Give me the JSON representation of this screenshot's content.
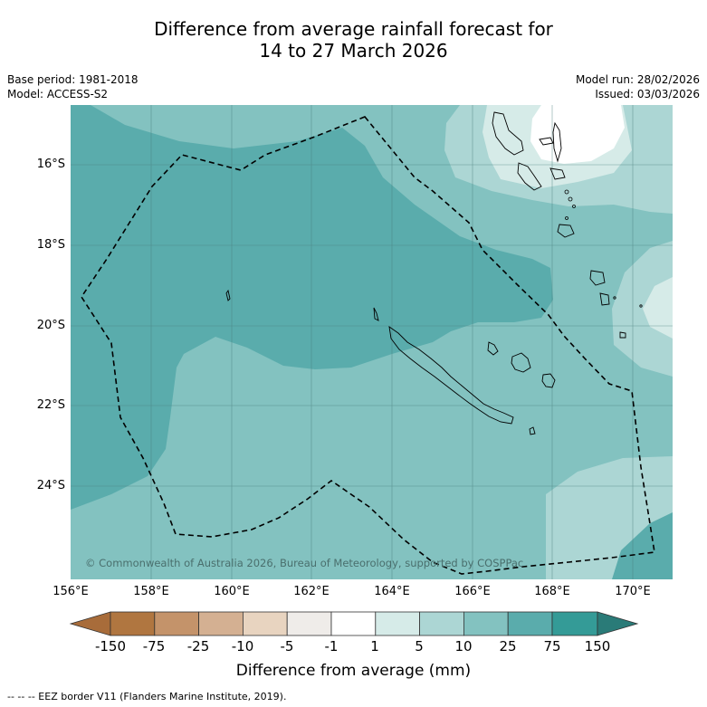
{
  "title": {
    "line1": "Difference from average rainfall forecast for",
    "line2": "14 to 27 March 2026"
  },
  "info": {
    "base_period": "Base period: 1981-2018",
    "model": "Model: ACCESS-S2",
    "model_run": "Model run: 28/02/2026",
    "issued": "Issued: 03/03/2026"
  },
  "map": {
    "lat_labels": [
      "16°S",
      "18°S",
      "20°S",
      "22°S",
      "24°S"
    ],
    "lon_labels": [
      "156°E",
      "158°E",
      "160°E",
      "162°E",
      "164°E",
      "166°E",
      "168°E",
      "170°E"
    ],
    "copyright": "© Commonwealth of Australia 2026, Bureau of Meteorology, supported by COSPPac"
  },
  "legend": {
    "ticks": [
      "-150",
      "-75",
      "-25",
      "-10",
      "-5",
      "-1",
      "1",
      "5",
      "10",
      "25",
      "75",
      "150"
    ],
    "label": "Difference from average (mm)",
    "colors": [
      "#a86c3a",
      "#b07640",
      "#c4936a",
      "#d4b092",
      "#e8d4c0",
      "#efece9",
      "#ffffff",
      "#d6ebe8",
      "#acd6d4",
      "#83c2c0",
      "#5aacac",
      "#349b97",
      "#2a7b78"
    ]
  },
  "footer": "--  --  -- EEZ border V11 (Flanders Marine Institute, 2019)."
}
